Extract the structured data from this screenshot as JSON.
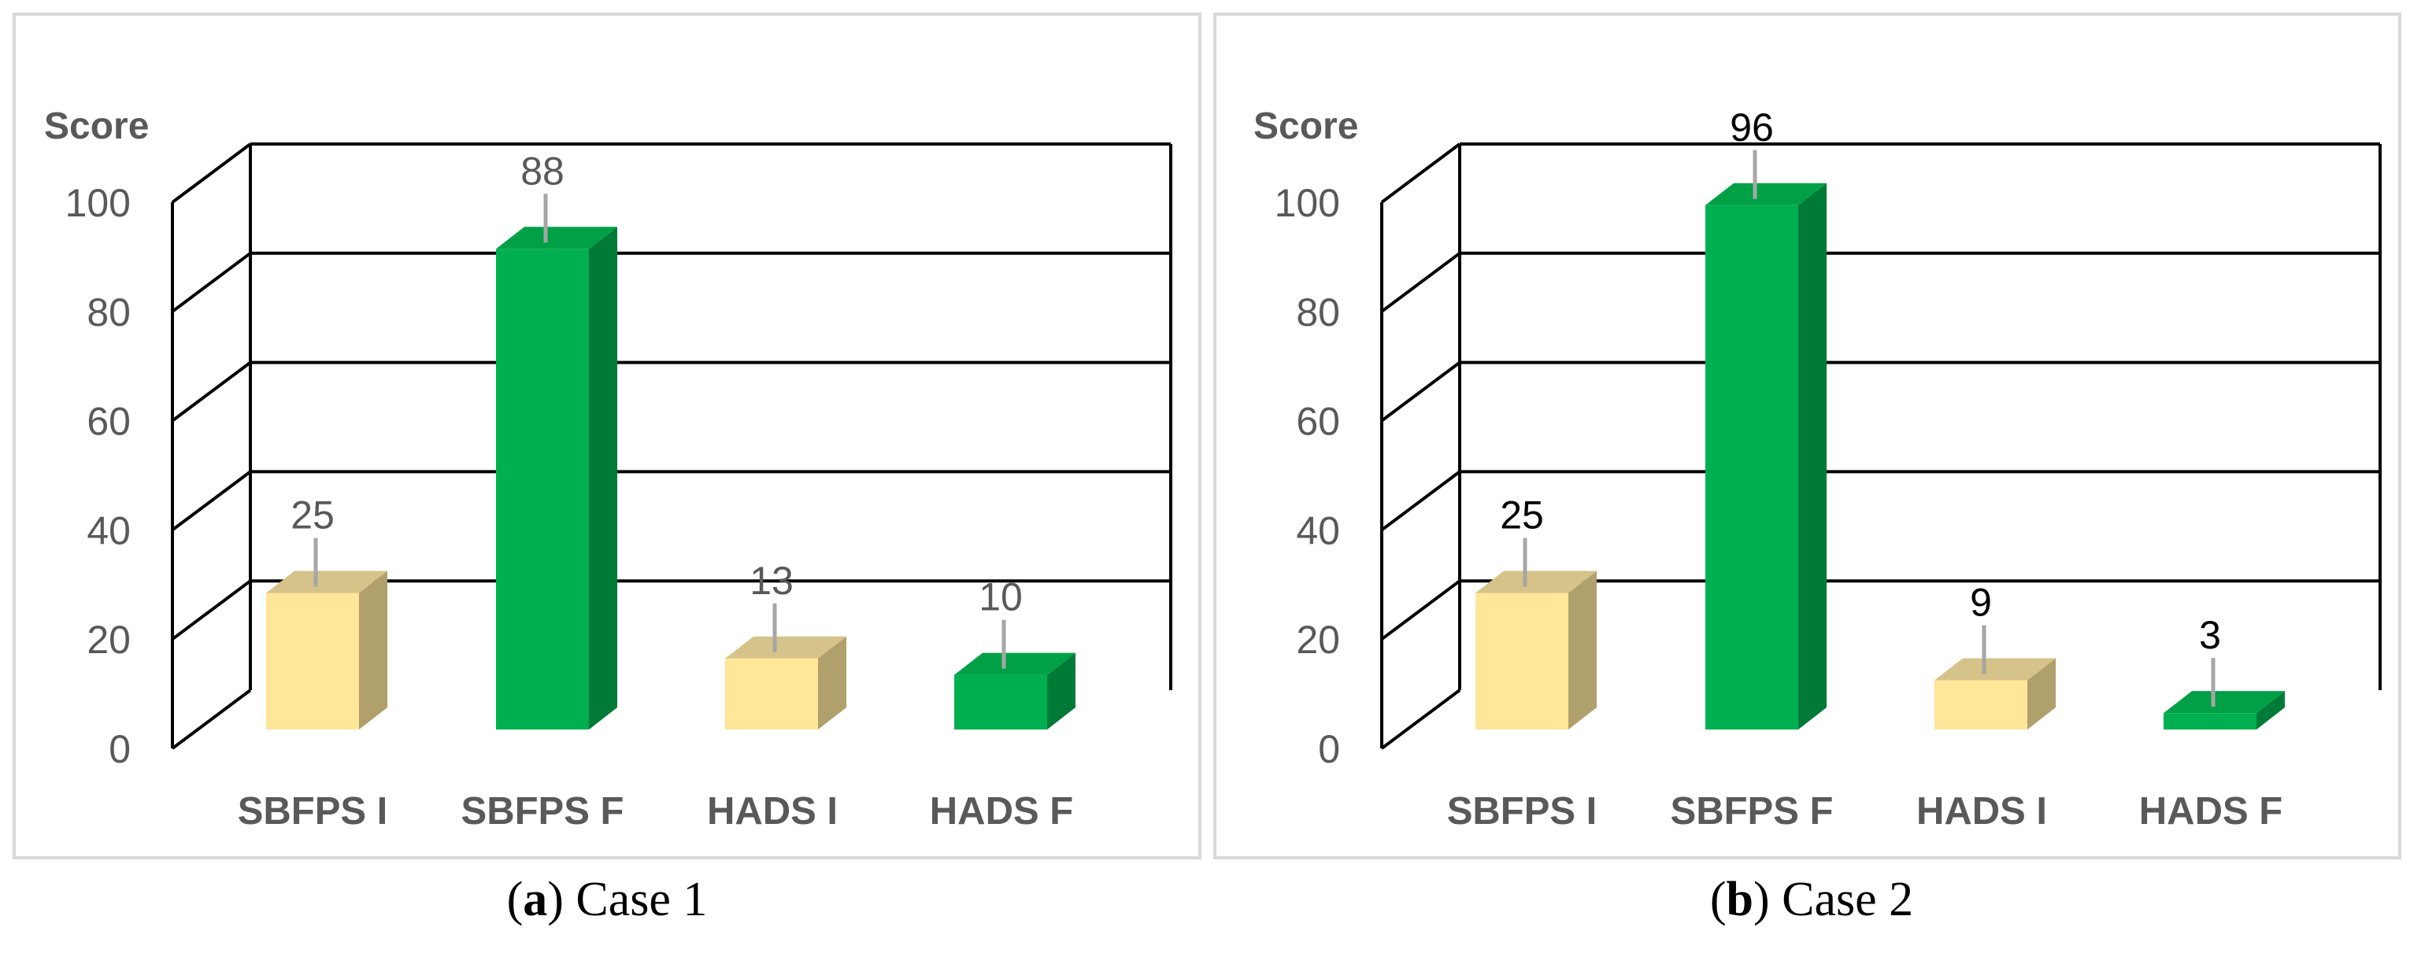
{
  "colors": {
    "initial_front": "#FFE699",
    "initial_top": "#D6C389",
    "initial_side": "#B0A06B",
    "final_front": "#00B050",
    "final_top": "#00A046",
    "final_side": "#007B37",
    "gridline": "#000000",
    "leader_line": "#A6A6A6",
    "axis_text": "#595959"
  },
  "chart_data": [
    {
      "type": "bar",
      "title": "",
      "ylabel": "Score",
      "ylim": [
        0,
        100
      ],
      "yticks": [
        "0",
        "20",
        "40",
        "60",
        "80",
        "100"
      ],
      "categories": [
        "SBFPS I",
        "SBFPS F",
        "HADS I",
        "HADS F"
      ],
      "values": [
        25,
        88,
        13,
        10
      ],
      "data_label_color": "#595959",
      "grid": true,
      "legend": "none",
      "caption": {
        "letter": "a",
        "text": ") Case 1"
      }
    },
    {
      "type": "bar",
      "title": "",
      "ylabel": "Score",
      "ylim": [
        0,
        100
      ],
      "yticks": [
        "0",
        "20",
        "40",
        "60",
        "80",
        "100"
      ],
      "categories": [
        "SBFPS I",
        "SBFPS F",
        "HADS I",
        "HADS F"
      ],
      "values": [
        25,
        96,
        9,
        3
      ],
      "data_label_color": "#000000",
      "grid": true,
      "legend": "none",
      "caption": {
        "letter": "b",
        "text": ") Case 2"
      }
    }
  ]
}
